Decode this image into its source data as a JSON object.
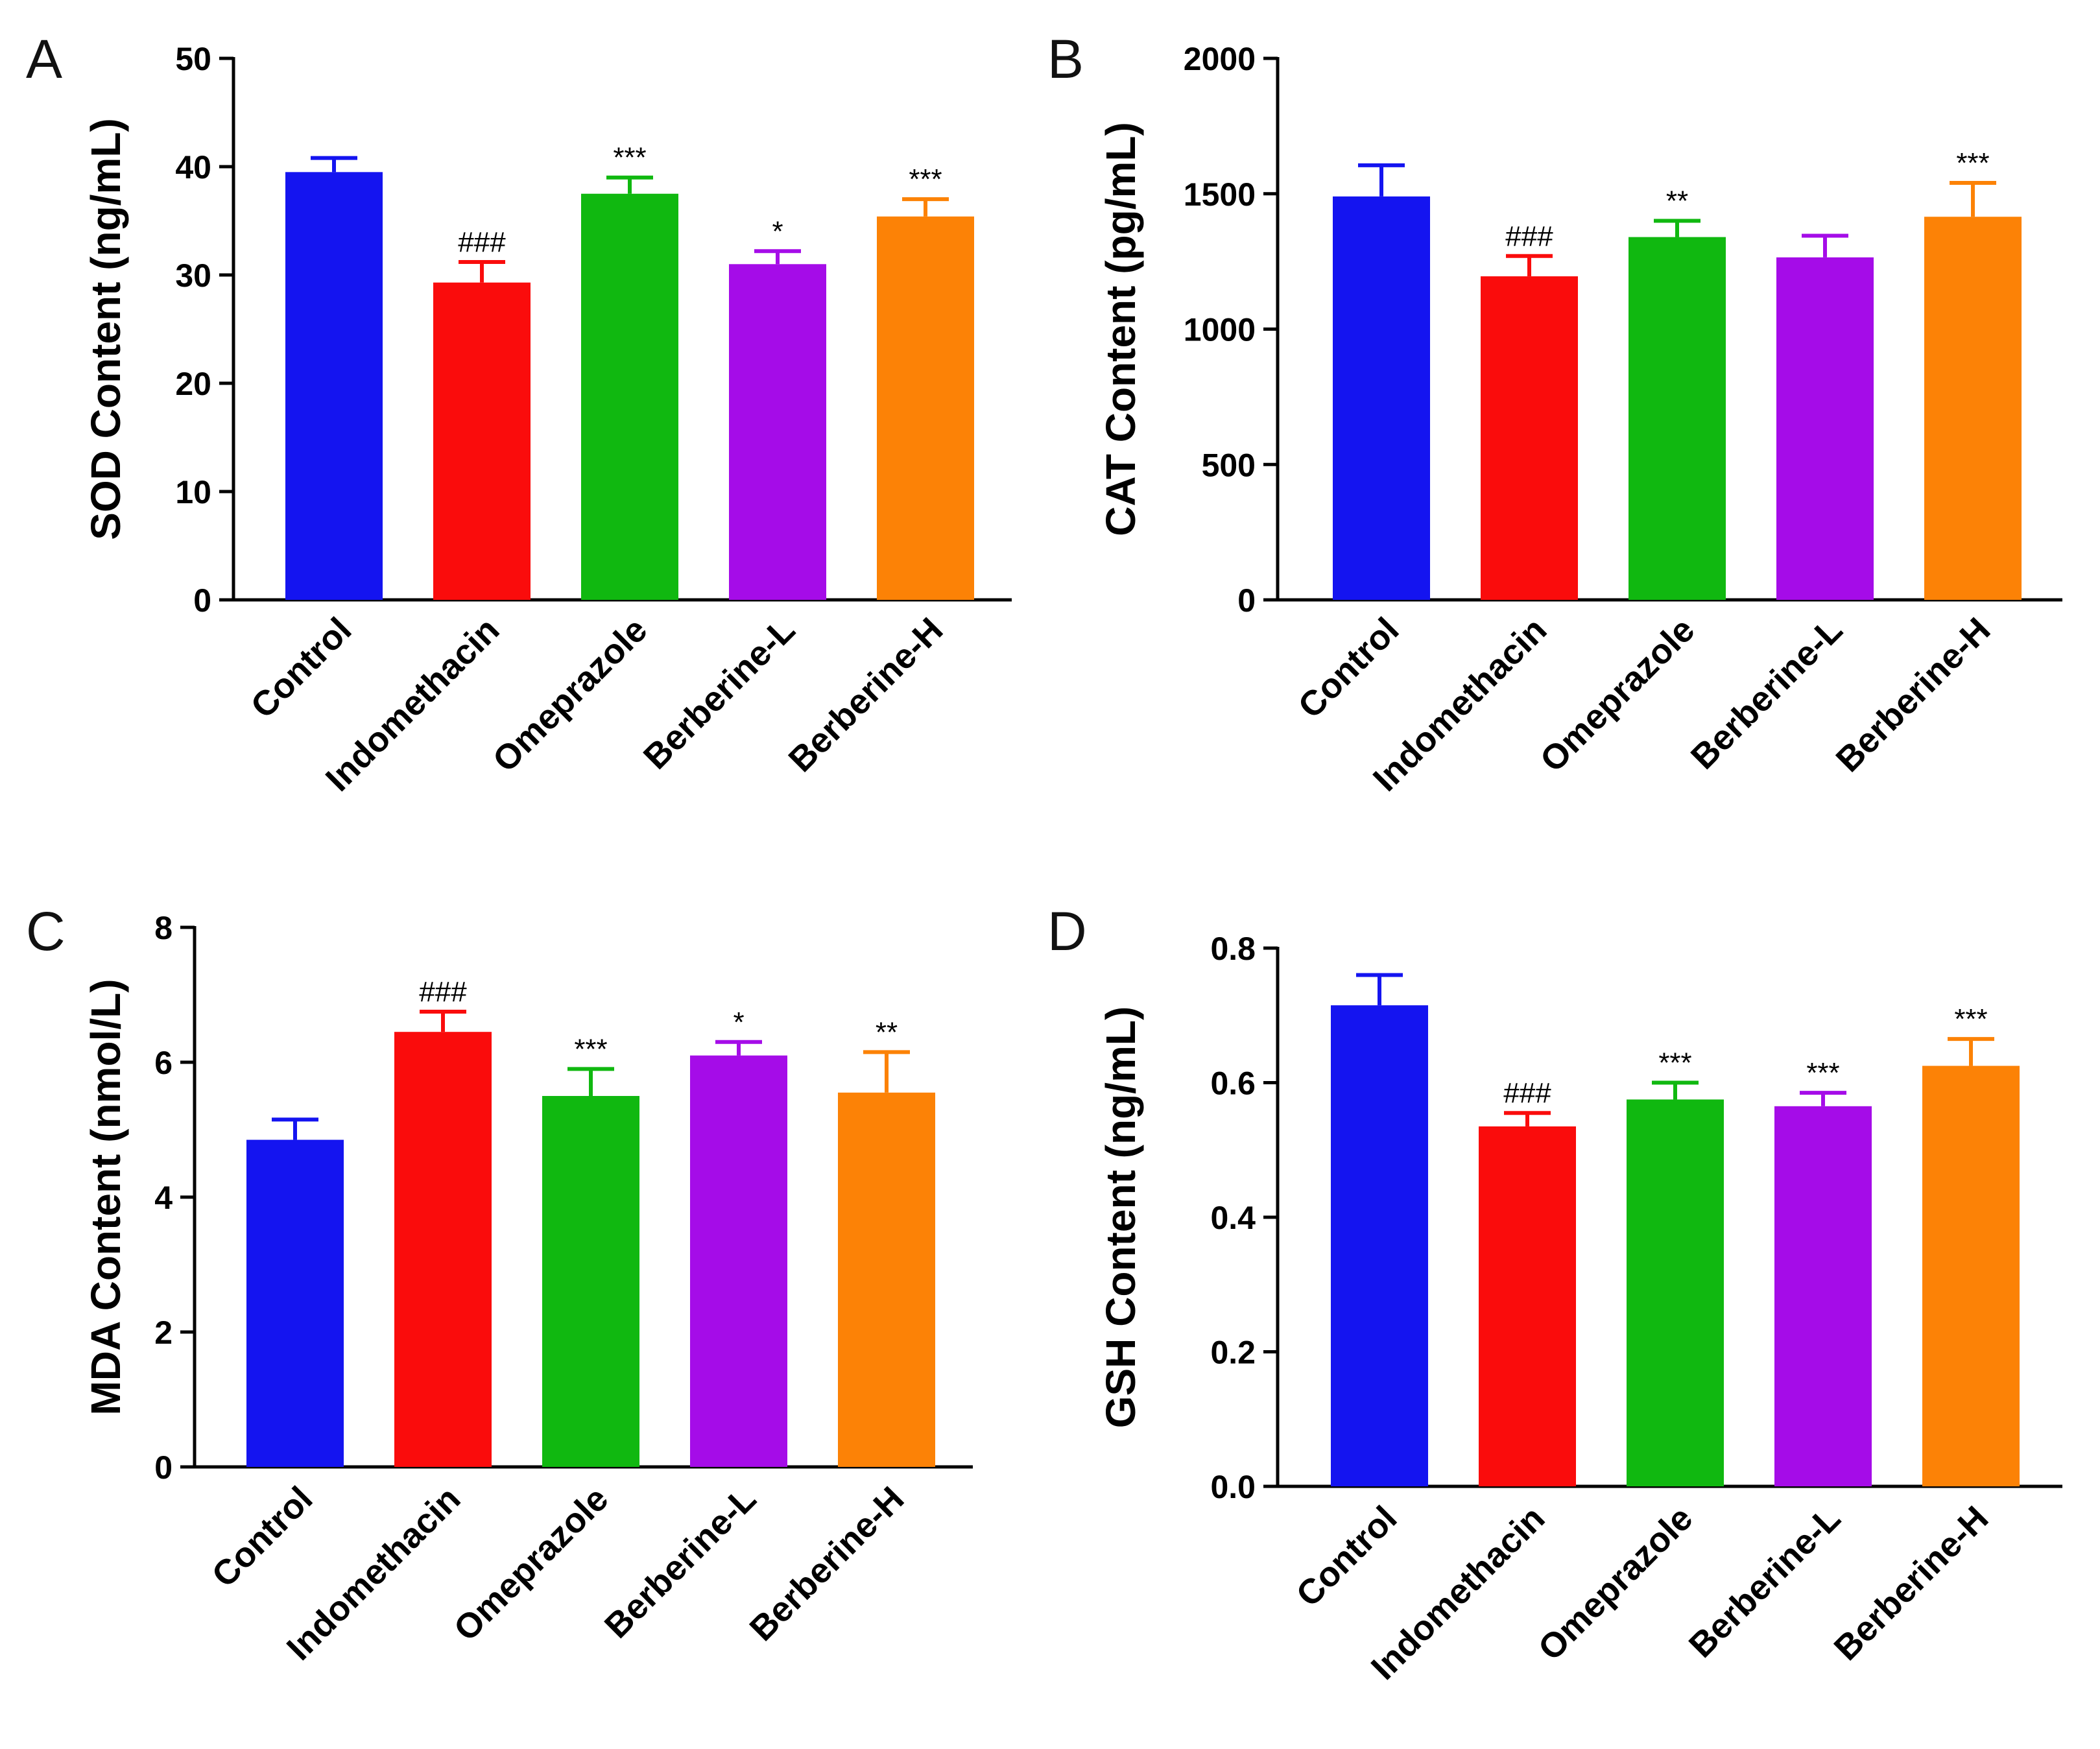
{
  "chart_data": [
    {
      "type": "bar",
      "panel": "A",
      "ylabel": "SOD Content (ng/mL)",
      "xlabel": "",
      "ylim": [
        0,
        50
      ],
      "yticks": [
        0,
        10,
        20,
        30,
        40,
        50
      ],
      "categories": [
        "Control",
        "Indomethacin",
        "Omeprazole",
        "Berberine-L",
        "Berberine-H"
      ],
      "values": [
        39.5,
        29.3,
        37.5,
        31.0,
        35.4
      ],
      "errors": [
        1.3,
        1.9,
        1.5,
        1.2,
        1.6
      ],
      "significance": [
        "",
        "###",
        "***",
        "*",
        "***"
      ]
    },
    {
      "type": "bar",
      "panel": "B",
      "ylabel": "CAT Content (pg/mL)",
      "xlabel": "",
      "ylim": [
        0,
        2000
      ],
      "yticks": [
        0,
        500,
        1000,
        1500,
        2000
      ],
      "categories": [
        "Control",
        "Indomethacin",
        "Omeprazole",
        "Berberine-L",
        "Berberine-H"
      ],
      "values": [
        1490,
        1195,
        1340,
        1265,
        1415
      ],
      "errors": [
        115,
        75,
        60,
        80,
        125
      ],
      "significance": [
        "",
        "###",
        "**",
        "",
        "***"
      ]
    },
    {
      "type": "bar",
      "panel": "C",
      "ylabel": "MDA Content (nmol/L)",
      "xlabel": "",
      "ylim": [
        0,
        8
      ],
      "yticks": [
        0,
        2,
        4,
        6,
        8
      ],
      "categories": [
        "Control",
        "Indomethacin",
        "Omeprazole",
        "Berberine-L",
        "Berberine-H"
      ],
      "values": [
        4.85,
        6.45,
        5.5,
        6.1,
        5.55
      ],
      "errors": [
        0.3,
        0.3,
        0.4,
        0.2,
        0.6
      ],
      "significance": [
        "",
        "###",
        "***",
        "*",
        "**"
      ]
    },
    {
      "type": "bar",
      "panel": "D",
      "ylabel": "GSH Content (ng/mL)",
      "xlabel": "",
      "ylim": [
        0,
        0.8
      ],
      "yticks": [
        "0.0",
        "0.2",
        "0.4",
        "0.6",
        "0.8"
      ],
      "categories": [
        "Control",
        "Indomethacin",
        "Omeprazole",
        "Berberine-L",
        "Berberine-H"
      ],
      "values": [
        0.715,
        0.535,
        0.575,
        0.565,
        0.625
      ],
      "errors": [
        0.045,
        0.02,
        0.025,
        0.02,
        0.04
      ],
      "significance": [
        "",
        "###",
        "***",
        "***",
        "***"
      ]
    }
  ],
  "colors": {
    "Control": "#1414f0",
    "Indomethacin": "#fa0c0c",
    "Omeprazole": "#10b810",
    "Berberine-L": "#a50ce8",
    "Berberine-H": "#fc8206",
    "axis": "#000000"
  }
}
